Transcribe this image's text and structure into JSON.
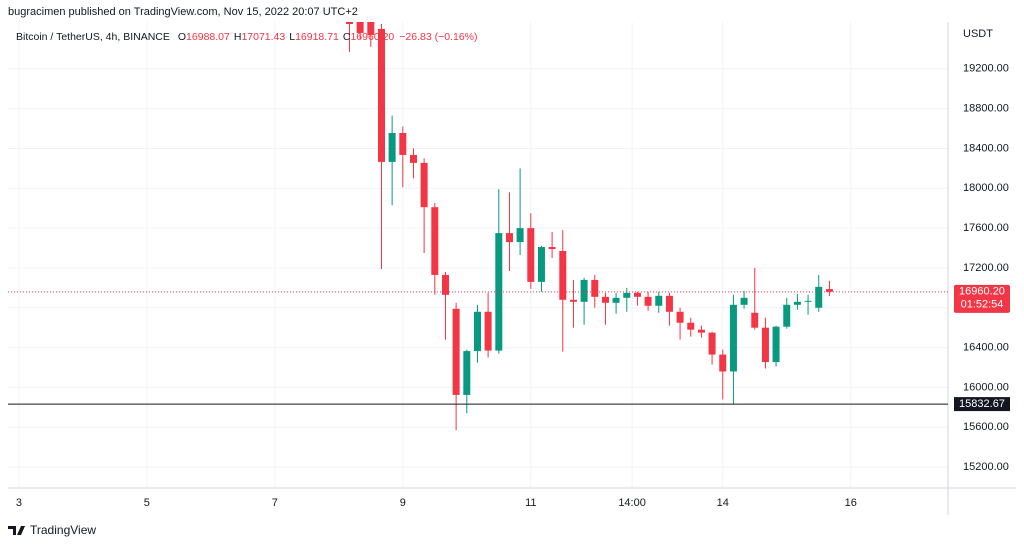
{
  "header": {
    "publisher": "bugracimen published on TradingView.com, Nov 15, 2022 20:07 UTC+2",
    "symbol": "Bitcoin / TetherUS, 4h, BINANCE",
    "ohlc": [
      {
        "key": "O",
        "value": "16988.07"
      },
      {
        "key": "H",
        "value": "17071.43"
      },
      {
        "key": "L",
        "value": "16918.71"
      },
      {
        "key": "C",
        "value": "16960.20"
      }
    ],
    "change": "−26.83 (−0.16%)"
  },
  "footer": {
    "brand": "TradingView"
  },
  "chart_data": {
    "type": "candlestick",
    "y_axis_label": "USDT",
    "up_color": "#089981",
    "down_color": "#f23645",
    "grid": true,
    "x": [
      8.167,
      8.333,
      8.5,
      8.667,
      8.833,
      9.0,
      9.167,
      9.333,
      9.5,
      9.667,
      9.833,
      10.0,
      10.167,
      10.333,
      10.5,
      10.667,
      10.833,
      11.0,
      11.167,
      11.333,
      11.5,
      11.667,
      11.833,
      12.0,
      12.167,
      12.333,
      12.5,
      12.667,
      12.833,
      13.0,
      13.167,
      13.333,
      13.5,
      13.667,
      13.833,
      14.0,
      14.167,
      14.333,
      14.5,
      14.667,
      14.833,
      15.0,
      15.167,
      15.333,
      15.5,
      15.667
    ],
    "open": [
      19720,
      19700,
      19750,
      19600,
      18265,
      18555,
      18335,
      18255,
      17810,
      17130,
      16790,
      15925,
      16365,
      16760,
      16370,
      17550,
      17460,
      17600,
      17060,
      17410,
      17370,
      16880,
      16860,
      17080,
      16910,
      16850,
      16900,
      16950,
      16910,
      16820,
      16920,
      16760,
      16650,
      16580,
      16550,
      16330,
      16160,
      16830,
      16750,
      16600,
      16255,
      16610,
      16830,
      16860,
      16800,
      16988.07
    ],
    "high": [
      19800,
      19800,
      19800,
      19650,
      18730,
      18620,
      18400,
      18300,
      17850,
      17160,
      16850,
      16380,
      16830,
      16950,
      17990,
      17960,
      18200,
      17750,
      17420,
      17560,
      17580,
      17080,
      17100,
      17130,
      16950,
      16950,
      17000,
      16960,
      16960,
      16960,
      16950,
      16800,
      16700,
      16620,
      16560,
      16380,
      16930,
      16970,
      17200,
      16700,
      16620,
      16900,
      16940,
      16930,
      17130,
      17071.43
    ],
    "low": [
      19370,
      19500,
      19420,
      17190,
      17830,
      18010,
      18100,
      17350,
      16930,
      16480,
      15570,
      15740,
      16250,
      16300,
      16340,
      17170,
      17330,
      16990,
      16960,
      17300,
      16360,
      16600,
      16630,
      16800,
      16630,
      16740,
      16760,
      16820,
      16770,
      16750,
      16620,
      16480,
      16510,
      16500,
      16230,
      15880,
      15830,
      16790,
      16580,
      16190,
      16210,
      16590,
      16780,
      16730,
      16760,
      16918.71
    ],
    "close": [
      19650,
      19560,
      19540,
      18265,
      18555,
      18335,
      18255,
      17810,
      17130,
      16930,
      15925,
      16365,
      16760,
      16370,
      17550,
      17460,
      17600,
      17060,
      17410,
      17390,
      16880,
      16860,
      17080,
      16910,
      16850,
      16900,
      16950,
      16910,
      16820,
      16920,
      16760,
      16650,
      16580,
      16550,
      16330,
      16160,
      16830,
      16900,
      16600,
      16255,
      16610,
      16830,
      16860,
      16870,
      17010,
      16960.2
    ],
    "xlim": [
      2.83,
      17.52
    ],
    "xticks": [
      3,
      5,
      7,
      9,
      11,
      {
        "value": 12.583,
        "label": "14:00"
      },
      14,
      16
    ],
    "ylim": [
      14990,
      19670
    ],
    "yticks": [
      {
        "value": 15200,
        "label": "15200.00"
      },
      {
        "value": 15600,
        "label": "15600.00"
      },
      {
        "value": 16000,
        "label": "16000.00"
      },
      {
        "value": 16400,
        "label": "16400.00"
      },
      {
        "value": 16800,
        "label": "16800.00"
      },
      {
        "value": 17200,
        "label": "17200.00"
      },
      {
        "value": 17600,
        "label": "17600.00"
      },
      {
        "value": 18000,
        "label": "18000.00"
      },
      {
        "value": 18400,
        "label": "18400.00"
      },
      {
        "value": 18800,
        "label": "18800.00"
      },
      {
        "value": 19200,
        "label": "19200.00"
      }
    ],
    "price_line": {
      "value": 16960.2,
      "label": "16960.20",
      "countdown": "01:52:54"
    },
    "horizontal_line": {
      "value": 15832.67,
      "label": "15832.67"
    }
  }
}
